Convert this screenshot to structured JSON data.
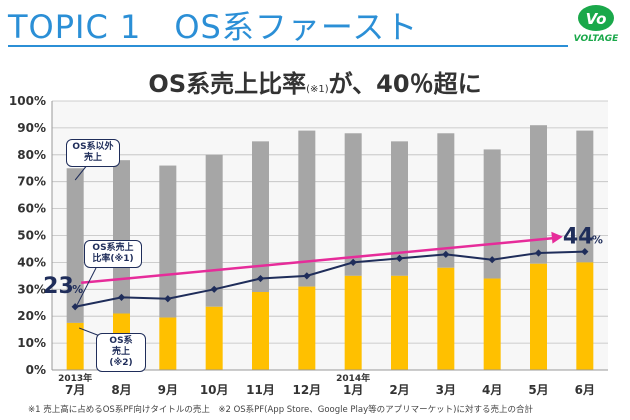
{
  "header": {
    "topic_title": "TOPIC 1　OS系ファースト",
    "logo_text": "VOLTAGE",
    "logo_mark": "Vo",
    "headline_main": "OS系売上比率",
    "headline_note": "(※1)",
    "headline_tail": "が、40％超に"
  },
  "colors": {
    "topic_blue": "#2b8fd6",
    "bar_total": "#a6a6a6",
    "bar_os": "#ffc000",
    "line": "#1f2d5a",
    "arrow": "#e62c9a",
    "logo_green": "#1aa84a"
  },
  "callouts": {
    "other": [
      "OS系以外",
      "売上"
    ],
    "ratio": [
      "OS系売上",
      "比率(※1)"
    ],
    "os": [
      "OS系",
      "売上(※2)"
    ]
  },
  "annotations": {
    "start_value": "23",
    "start_unit": "%",
    "end_value": "44",
    "end_unit": "%"
  },
  "chart_data": {
    "type": "bar",
    "categories": [
      "7月",
      "8月",
      "9月",
      "10月",
      "11月",
      "12月",
      "1月",
      "2月",
      "3月",
      "4月",
      "5月",
      "6月"
    ],
    "year_labels": {
      "0": "2013年",
      "6": "2014年"
    },
    "yticks": [
      "0%",
      "10%",
      "20%",
      "30%",
      "40%",
      "50%",
      "60%",
      "70%",
      "80%",
      "90%",
      "100%"
    ],
    "ylim": [
      0,
      100
    ],
    "grid": true,
    "series": [
      {
        "kind": "bar_total",
        "values": [
          75,
          78,
          76,
          80,
          85,
          89,
          88,
          85,
          88,
          82,
          91,
          89
        ]
      },
      {
        "kind": "bar_os",
        "values": [
          17.5,
          21,
          19.5,
          23.5,
          29,
          31,
          35,
          35,
          38,
          34,
          39.5,
          40
        ]
      },
      {
        "kind": "line",
        "values": [
          23.5,
          27,
          26.5,
          30,
          34,
          35,
          40,
          41.5,
          43,
          41,
          43.5,
          44
        ]
      }
    ]
  },
  "footnote": "※1 売上高に占めるOS系PF向けタイトルの売上　※2 OS系PF(App Store、Google Play等のアプリマーケット)に対する売上の合計"
}
